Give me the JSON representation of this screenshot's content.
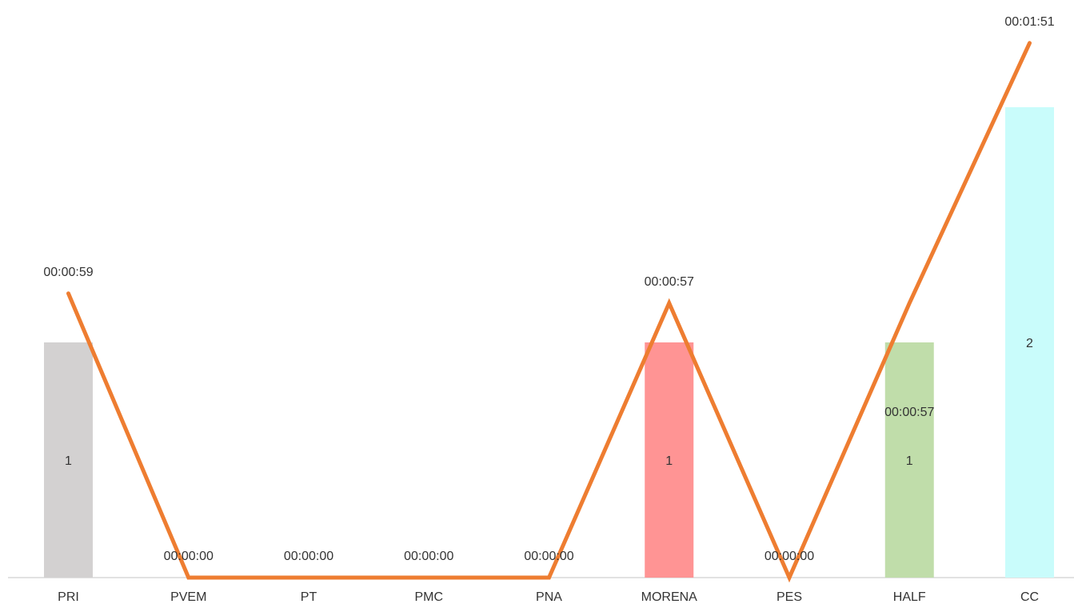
{
  "chart_data": {
    "type": "bar",
    "categories": [
      "PRI",
      "PVEM",
      "PT",
      "PMC",
      "PNA",
      "MORENA",
      "PES",
      "HALF",
      "CC"
    ],
    "series": [
      {
        "type": "bar",
        "values": [
          1,
          0,
          0,
          0,
          0,
          1,
          0,
          1,
          2
        ],
        "labels": [
          "1",
          "",
          "",
          "",
          "",
          "1",
          "",
          "1",
          "2"
        ],
        "colors": [
          "#d3d1d1",
          "#d3d1d1",
          "#d3d1d1",
          "#d3d1d1",
          "#d3d1d1",
          "#ff9494",
          "#d3d1d1",
          "#c0ddaa",
          "#c9fcfb"
        ]
      },
      {
        "type": "line",
        "values_seconds": [
          59,
          0,
          0,
          0,
          0,
          57,
          0,
          57,
          111
        ],
        "labels": [
          "00:00:59",
          "00:00:00",
          "00:00:00",
          "00:00:00",
          "00:00:00",
          "00:00:57",
          "00:00:00",
          "00:00:57",
          "00:01:51"
        ],
        "color": "#ee7d31"
      }
    ],
    "y_bar_range": [
      0,
      2.4
    ],
    "y_line_range": [
      0,
      120
    ],
    "grid": false,
    "legend": "none",
    "axis_color": "#d9d9d9"
  }
}
